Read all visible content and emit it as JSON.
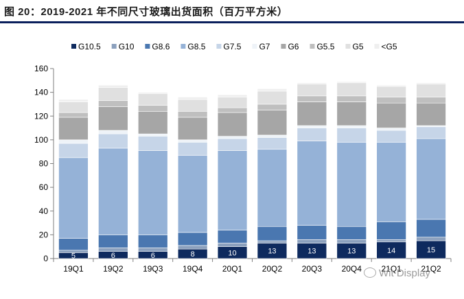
{
  "title": "图 20：2019-2021 年不同尺寸玻璃出货面积（百万平方米）",
  "watermark": "Wit Display",
  "chart_data": {
    "type": "bar",
    "stacked": true,
    "title": "图 20：2019-2021 年不同尺寸玻璃出货面积（百万平方米）",
    "xlabel": "",
    "ylabel": "",
    "ylim": [
      0,
      160
    ],
    "yticks": [
      0,
      20,
      40,
      60,
      80,
      100,
      120,
      140,
      160
    ],
    "grid": false,
    "legend_position": "top",
    "categories": [
      "19Q1",
      "19Q2",
      "19Q3",
      "19Q4",
      "20Q1",
      "20Q2",
      "20Q3",
      "20Q4",
      "21Q1",
      "21Q2"
    ],
    "series": [
      {
        "name": "G10.5",
        "color": "#0e2a5e",
        "values": [
          5,
          6,
          6,
          8,
          10,
          13,
          13,
          13,
          14,
          15
        ],
        "show_labels": true
      },
      {
        "name": "G10",
        "color": "#8ba0bd",
        "values": [
          2,
          3,
          3,
          3,
          3,
          2,
          3,
          3,
          2,
          3
        ]
      },
      {
        "name": "G8.6",
        "color": "#4a77b0",
        "values": [
          10,
          11,
          11,
          11,
          11,
          12,
          12,
          11,
          15,
          15
        ]
      },
      {
        "name": "G8.5",
        "color": "#95b2d7",
        "values": [
          68,
          73,
          71,
          65,
          67,
          65,
          71,
          71,
          67,
          68
        ]
      },
      {
        "name": "G7.5",
        "color": "#c6d5e8",
        "values": [
          12,
          12,
          12,
          11,
          10,
          10,
          11,
          12,
          10,
          10
        ]
      },
      {
        "name": "G7",
        "color": "#eef3f8",
        "values": [
          3,
          3,
          2,
          2,
          2,
          2,
          2,
          2,
          2,
          1
        ]
      },
      {
        "name": "G6",
        "color": "#a6a6a6",
        "values": [
          19,
          20,
          19,
          19,
          20,
          21,
          20,
          20,
          21,
          19
        ]
      },
      {
        "name": "G5.5",
        "color": "#bfbfbf",
        "values": [
          4,
          5,
          5,
          5,
          4,
          5,
          5,
          5,
          5,
          5
        ]
      },
      {
        "name": "G5",
        "color": "#e0e0e0",
        "values": [
          9,
          11,
          10,
          10,
          9,
          11,
          10,
          11,
          9,
          11
        ]
      },
      {
        "name": "<G5",
        "color": "#efefef",
        "values": [
          2,
          2,
          1,
          2,
          2,
          2,
          1,
          1,
          1,
          1
        ]
      }
    ]
  }
}
